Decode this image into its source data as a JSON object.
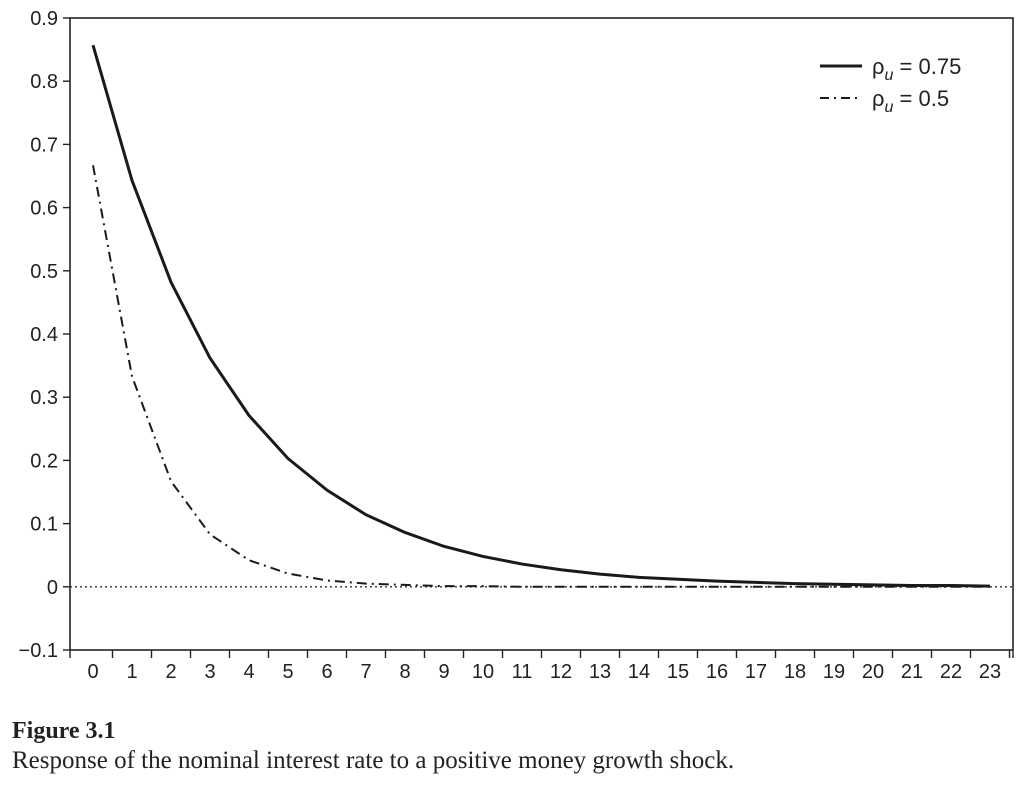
{
  "chart_data": {
    "type": "line",
    "x": [
      0,
      1,
      2,
      3,
      4,
      5,
      6,
      7,
      8,
      9,
      10,
      11,
      12,
      13,
      14,
      15,
      16,
      17,
      18,
      19,
      20,
      21,
      22,
      23
    ],
    "series": [
      {
        "name": "ρu = 0.75",
        "legend_base": "ρ",
        "legend_sub": "u",
        "legend_rest": " = 0.75",
        "style": "solid",
        "color": "#1a1a1a",
        "values": [
          0.857,
          0.643,
          0.482,
          0.362,
          0.271,
          0.203,
          0.153,
          0.114,
          0.086,
          0.064,
          0.048,
          0.036,
          0.027,
          0.02,
          0.015,
          0.012,
          0.009,
          0.007,
          0.005,
          0.004,
          0.003,
          0.002,
          0.002,
          0.001
        ]
      },
      {
        "name": "ρu = 0.5",
        "legend_base": "ρ",
        "legend_sub": "u",
        "legend_rest": " = 0.5",
        "style": "dashdot",
        "color": "#1a1a1a",
        "values": [
          0.667,
          0.333,
          0.167,
          0.083,
          0.042,
          0.021,
          0.01,
          0.005,
          0.003,
          0.001,
          0.001,
          0.0,
          0.0,
          0.0,
          0.0,
          0.0,
          0.0,
          0.0,
          0.0,
          0.0,
          0.0,
          0.0,
          0.0,
          0.0
        ]
      }
    ],
    "ylim": [
      -0.1,
      0.9
    ],
    "yticks": [
      -0.1,
      0,
      0.1,
      0.2,
      0.3,
      0.4,
      0.5,
      0.6,
      0.7,
      0.8,
      0.9
    ],
    "ytick_labels": [
      "−0.1",
      "0",
      "0.1",
      "0.2",
      "0.3",
      "0.4",
      "0.5",
      "0.6",
      "0.7",
      "0.8",
      "0.9"
    ],
    "xticks": [
      0,
      1,
      2,
      3,
      4,
      5,
      6,
      7,
      8,
      9,
      10,
      11,
      12,
      13,
      14,
      15,
      16,
      17,
      18,
      19,
      20,
      21,
      22,
      23
    ],
    "zero_line": "dotted",
    "grid": false,
    "legend_position": "top-right",
    "title": "",
    "xlabel": "",
    "ylabel": ""
  },
  "caption": {
    "figure_label": "Figure 3.1",
    "text": "Response of the nominal interest rate to a positive money growth shock."
  }
}
